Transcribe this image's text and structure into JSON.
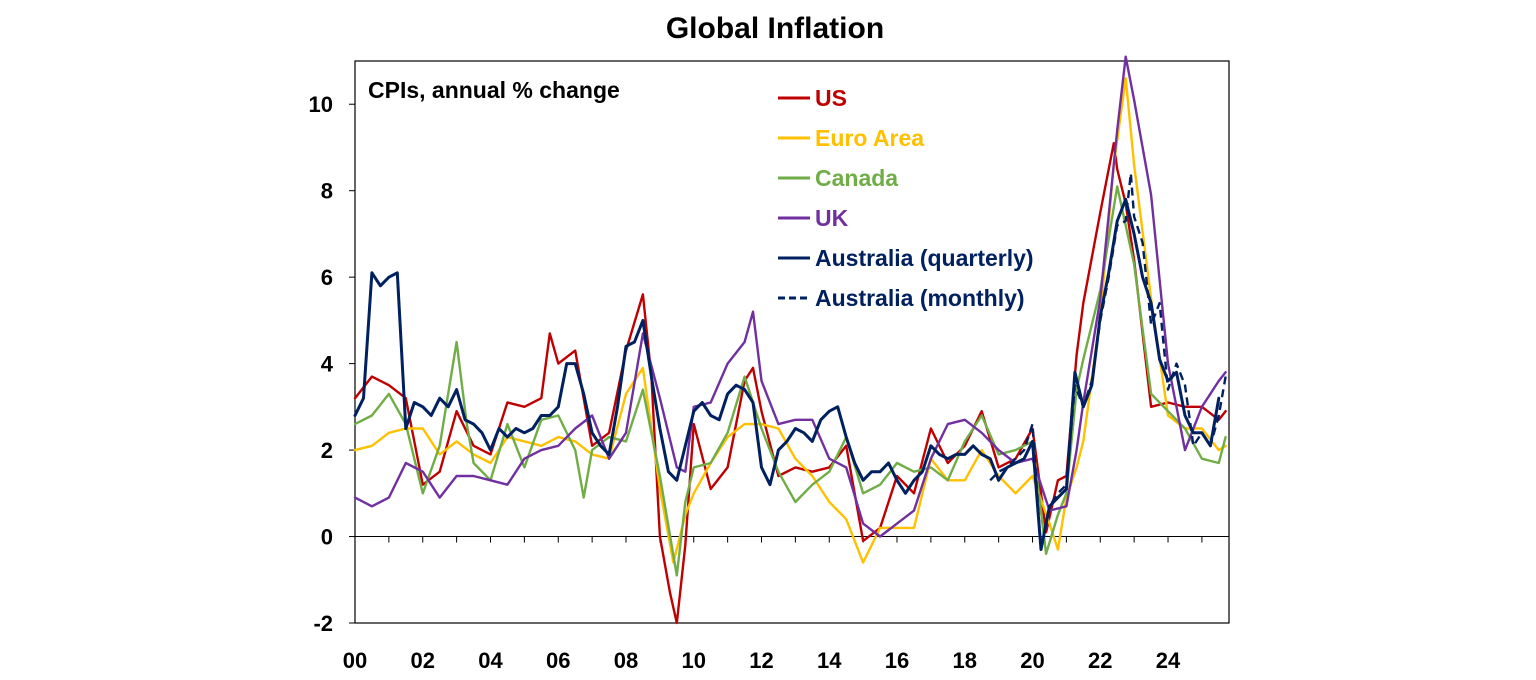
{
  "chart_data": {
    "type": "line",
    "title": "Global Inflation",
    "subtitle": "CPIs, annual % change",
    "xlabel": "",
    "ylabel": "",
    "xlim": [
      2000,
      2025.8
    ],
    "ylim": [
      -2,
      11
    ],
    "x_ticks": [
      {
        "value": 2000,
        "label": "00"
      },
      {
        "value": 2002,
        "label": "02"
      },
      {
        "value": 2004,
        "label": "04"
      },
      {
        "value": 2006,
        "label": "06"
      },
      {
        "value": 2008,
        "label": "08"
      },
      {
        "value": 2010,
        "label": "10"
      },
      {
        "value": 2012,
        "label": "12"
      },
      {
        "value": 2014,
        "label": "14"
      },
      {
        "value": 2016,
        "label": "16"
      },
      {
        "value": 2018,
        "label": "18"
      },
      {
        "value": 2020,
        "label": "20"
      },
      {
        "value": 2022,
        "label": "22"
      },
      {
        "value": 2024,
        "label": "24"
      }
    ],
    "y_ticks": [
      {
        "value": -2,
        "label": "-2"
      },
      {
        "value": 0,
        "label": "0"
      },
      {
        "value": 2,
        "label": "2"
      },
      {
        "value": 4,
        "label": "4"
      },
      {
        "value": 6,
        "label": "6"
      },
      {
        "value": 8,
        "label": "8"
      },
      {
        "value": 10,
        "label": "10"
      }
    ],
    "grid": false,
    "legend_position": "top-center",
    "series": [
      {
        "name": "US",
        "color": "#c00000",
        "dash": false,
        "x": [
          2000.0,
          2000.5,
          2001.0,
          2001.5,
          2002.0,
          2002.5,
          2003.0,
          2003.5,
          2004.0,
          2004.5,
          2005.0,
          2005.5,
          2005.75,
          2006.0,
          2006.5,
          2007.0,
          2007.5,
          2008.0,
          2008.5,
          2008.75,
          2009.0,
          2009.3,
          2009.5,
          2009.75,
          2010.0,
          2010.5,
          2011.0,
          2011.5,
          2011.75,
          2012.0,
          2012.5,
          2013.0,
          2013.5,
          2014.0,
          2014.5,
          2015.0,
          2015.5,
          2016.0,
          2016.5,
          2017.0,
          2017.5,
          2018.0,
          2018.5,
          2019.0,
          2019.5,
          2020.0,
          2020.4,
          2020.75,
          2021.0,
          2021.3,
          2021.5,
          2022.0,
          2022.4,
          2022.5,
          2022.75,
          2023.0,
          2023.5,
          2024.0,
          2024.5,
          2025.0,
          2025.5,
          2025.7
        ],
        "y": [
          3.2,
          3.7,
          3.5,
          3.2,
          1.2,
          1.5,
          2.9,
          2.1,
          1.9,
          3.1,
          3.0,
          3.2,
          4.7,
          4.0,
          4.3,
          2.1,
          2.4,
          4.3,
          5.6,
          3.7,
          0.0,
          -1.3,
          -2.0,
          -0.2,
          2.6,
          1.1,
          1.6,
          3.6,
          3.9,
          2.9,
          1.4,
          1.6,
          1.5,
          1.6,
          2.1,
          -0.1,
          0.2,
          1.4,
          1.0,
          2.5,
          1.7,
          2.1,
          2.9,
          1.6,
          1.8,
          2.5,
          0.1,
          1.3,
          1.4,
          4.2,
          5.4,
          7.5,
          9.1,
          8.5,
          7.7,
          6.4,
          3.0,
          3.1,
          3.0,
          3.0,
          2.7,
          2.9
        ]
      },
      {
        "name": "Euro Area",
        "color": "#ffc000",
        "dash": false,
        "x": [
          2000.0,
          2000.5,
          2001.0,
          2001.5,
          2002.0,
          2002.5,
          2003.0,
          2003.5,
          2004.0,
          2004.5,
          2005.0,
          2005.5,
          2006.0,
          2006.5,
          2007.0,
          2007.5,
          2008.0,
          2008.5,
          2009.0,
          2009.4,
          2009.75,
          2010.0,
          2010.5,
          2011.0,
          2011.5,
          2012.0,
          2012.5,
          2013.0,
          2013.5,
          2014.0,
          2014.5,
          2015.0,
          2015.5,
          2016.0,
          2016.5,
          2017.0,
          2017.5,
          2018.0,
          2018.5,
          2019.0,
          2019.5,
          2020.0,
          2020.5,
          2020.75,
          2021.0,
          2021.3,
          2021.5,
          2022.0,
          2022.4,
          2022.75,
          2023.0,
          2023.5,
          2024.0,
          2024.5,
          2025.0,
          2025.5,
          2025.7
        ],
        "y": [
          2.0,
          2.1,
          2.4,
          2.5,
          2.5,
          1.9,
          2.2,
          1.9,
          1.7,
          2.3,
          2.2,
          2.1,
          2.3,
          2.2,
          1.9,
          1.8,
          3.3,
          3.9,
          1.1,
          -0.6,
          0.5,
          1.0,
          1.7,
          2.3,
          2.6,
          2.6,
          2.5,
          1.8,
          1.4,
          0.8,
          0.4,
          -0.6,
          0.2,
          0.2,
          0.2,
          1.8,
          1.3,
          1.3,
          2.0,
          1.4,
          1.0,
          1.4,
          0.3,
          -0.3,
          0.9,
          1.6,
          2.2,
          5.1,
          8.6,
          10.6,
          8.6,
          5.5,
          2.8,
          2.5,
          2.5,
          2.0,
          2.1
        ]
      },
      {
        "name": "Canada",
        "color": "#70ad47",
        "dash": false,
        "x": [
          2000.0,
          2000.5,
          2001.0,
          2001.5,
          2002.0,
          2002.5,
          2003.0,
          2003.3,
          2003.5,
          2004.0,
          2004.5,
          2005.0,
          2005.5,
          2006.0,
          2006.5,
          2006.75,
          2007.0,
          2007.5,
          2008.0,
          2008.5,
          2009.0,
          2009.5,
          2009.75,
          2010.0,
          2010.5,
          2011.0,
          2011.5,
          2012.0,
          2012.5,
          2013.0,
          2013.5,
          2014.0,
          2014.5,
          2015.0,
          2015.5,
          2016.0,
          2016.5,
          2017.0,
          2017.5,
          2018.0,
          2018.5,
          2019.0,
          2019.5,
          2020.0,
          2020.4,
          2020.75,
          2021.0,
          2021.3,
          2021.5,
          2022.0,
          2022.5,
          2023.0,
          2023.5,
          2024.0,
          2024.5,
          2025.0,
          2025.5,
          2025.7
        ],
        "y": [
          2.6,
          2.8,
          3.3,
          2.6,
          1.0,
          2.1,
          4.5,
          2.6,
          1.7,
          1.3,
          2.6,
          1.6,
          2.7,
          2.8,
          2.0,
          0.9,
          2.0,
          2.3,
          2.2,
          3.4,
          1.4,
          -0.9,
          0.8,
          1.6,
          1.7,
          2.4,
          3.7,
          2.5,
          1.5,
          0.8,
          1.2,
          1.5,
          2.3,
          1.0,
          1.2,
          1.7,
          1.5,
          1.6,
          1.3,
          2.2,
          2.8,
          1.9,
          2.0,
          2.2,
          -0.4,
          0.5,
          1.0,
          3.4,
          4.1,
          5.7,
          8.1,
          6.3,
          3.3,
          2.9,
          2.5,
          1.8,
          1.7,
          2.3
        ]
      },
      {
        "name": "UK",
        "color": "#7030a0",
        "dash": false,
        "x": [
          2000.0,
          2000.5,
          2001.0,
          2001.5,
          2002.0,
          2002.5,
          2003.0,
          2003.5,
          2004.0,
          2004.5,
          2005.0,
          2005.5,
          2006.0,
          2006.5,
          2007.0,
          2007.5,
          2008.0,
          2008.5,
          2009.0,
          2009.5,
          2009.75,
          2010.0,
          2010.5,
          2011.0,
          2011.5,
          2011.75,
          2012.0,
          2012.5,
          2013.0,
          2013.5,
          2014.0,
          2014.5,
          2015.0,
          2015.5,
          2016.0,
          2016.5,
          2017.0,
          2017.5,
          2018.0,
          2018.5,
          2019.0,
          2019.5,
          2020.0,
          2020.5,
          2021.0,
          2021.3,
          2021.5,
          2022.0,
          2022.5,
          2022.75,
          2023.0,
          2023.5,
          2024.0,
          2024.5,
          2025.0,
          2025.5,
          2025.7
        ],
        "y": [
          0.9,
          0.7,
          0.9,
          1.7,
          1.5,
          0.9,
          1.4,
          1.4,
          1.3,
          1.2,
          1.8,
          2.0,
          2.1,
          2.5,
          2.8,
          1.8,
          2.4,
          4.7,
          3.2,
          1.6,
          1.5,
          3.0,
          3.1,
          4.0,
          4.5,
          5.2,
          3.6,
          2.6,
          2.7,
          2.7,
          1.8,
          1.6,
          0.3,
          0.0,
          0.3,
          0.6,
          1.8,
          2.6,
          2.7,
          2.4,
          2.0,
          1.7,
          1.8,
          0.6,
          0.7,
          2.0,
          3.1,
          5.5,
          9.4,
          11.1,
          10.1,
          7.9,
          4.0,
          2.0,
          3.0,
          3.6,
          3.8
        ]
      },
      {
        "name": "Australia (quarterly)",
        "color": "#002060",
        "dash": false,
        "x": [
          2000.0,
          2000.25,
          2000.5,
          2000.75,
          2001.0,
          2001.25,
          2001.5,
          2001.75,
          2002.0,
          2002.25,
          2002.5,
          2002.75,
          2003.0,
          2003.25,
          2003.5,
          2003.75,
          2004.0,
          2004.25,
          2004.5,
          2004.75,
          2005.0,
          2005.25,
          2005.5,
          2005.75,
          2006.0,
          2006.25,
          2006.5,
          2006.75,
          2007.0,
          2007.25,
          2007.5,
          2007.75,
          2008.0,
          2008.25,
          2008.5,
          2008.75,
          2009.0,
          2009.25,
          2009.5,
          2009.75,
          2010.0,
          2010.25,
          2010.5,
          2010.75,
          2011.0,
          2011.25,
          2011.5,
          2011.75,
          2012.0,
          2012.25,
          2012.5,
          2012.75,
          2013.0,
          2013.25,
          2013.5,
          2013.75,
          2014.0,
          2014.25,
          2014.5,
          2014.75,
          2015.0,
          2015.25,
          2015.5,
          2015.75,
          2016.0,
          2016.25,
          2016.5,
          2016.75,
          2017.0,
          2017.25,
          2017.5,
          2017.75,
          2018.0,
          2018.25,
          2018.5,
          2018.75,
          2019.0,
          2019.25,
          2019.5,
          2019.75,
          2020.0,
          2020.25,
          2020.5,
          2020.75,
          2021.0,
          2021.25,
          2021.5,
          2021.75,
          2022.0,
          2022.25,
          2022.5,
          2022.75,
          2023.0,
          2023.25,
          2023.5,
          2023.75,
          2024.0,
          2024.25,
          2024.5,
          2024.75,
          2025.0,
          2025.25,
          2025.5
        ],
        "y": [
          2.8,
          3.2,
          6.1,
          5.8,
          6.0,
          6.1,
          2.5,
          3.1,
          3.0,
          2.8,
          3.2,
          3.0,
          3.4,
          2.7,
          2.6,
          2.4,
          2.0,
          2.5,
          2.3,
          2.5,
          2.4,
          2.5,
          2.8,
          2.8,
          3.0,
          4.0,
          4.0,
          3.3,
          2.4,
          2.1,
          1.9,
          3.0,
          4.4,
          4.5,
          5.0,
          3.7,
          2.5,
          1.5,
          1.3,
          2.1,
          2.9,
          3.1,
          2.8,
          2.7,
          3.3,
          3.5,
          3.4,
          3.1,
          1.6,
          1.2,
          2.0,
          2.2,
          2.5,
          2.4,
          2.2,
          2.7,
          2.9,
          3.0,
          2.3,
          1.7,
          1.3,
          1.5,
          1.5,
          1.7,
          1.3,
          1.0,
          1.3,
          1.5,
          2.1,
          1.9,
          1.8,
          1.9,
          1.9,
          2.1,
          1.9,
          1.8,
          1.3,
          1.6,
          1.7,
          1.8,
          2.2,
          -0.3,
          0.7,
          0.9,
          1.1,
          3.8,
          3.0,
          3.5,
          5.1,
          6.1,
          7.3,
          7.8,
          7.0,
          6.0,
          5.4,
          4.1,
          3.6,
          3.8,
          2.8,
          2.4,
          2.4,
          2.1,
          3.2
        ]
      },
      {
        "name": "Australia (monthly)",
        "color": "#002060",
        "dash": true,
        "x": [
          2018.75,
          2019.0,
          2019.25,
          2019.5,
          2019.75,
          2020.0,
          2020.25,
          2020.5,
          2020.75,
          2021.0,
          2021.25,
          2021.5,
          2021.75,
          2022.0,
          2022.25,
          2022.5,
          2022.75,
          2022.9,
          2023.0,
          2023.25,
          2023.5,
          2023.75,
          2024.0,
          2024.25,
          2024.5,
          2024.75,
          2025.0,
          2025.25,
          2025.5,
          2025.7
        ],
        "y": [
          1.3,
          1.5,
          1.6,
          1.8,
          2.0,
          2.6,
          -0.3,
          0.7,
          1.0,
          1.2,
          3.5,
          3.0,
          3.6,
          5.0,
          6.0,
          7.2,
          7.3,
          8.4,
          7.4,
          6.8,
          4.9,
          5.4,
          3.4,
          4.0,
          3.5,
          2.1,
          2.4,
          2.1,
          2.8,
          3.7
        ]
      }
    ]
  }
}
